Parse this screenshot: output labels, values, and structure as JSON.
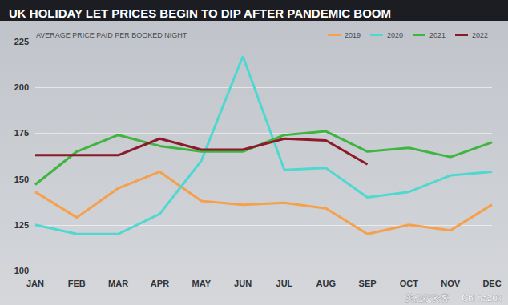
{
  "chart_data": {
    "type": "line",
    "title": "UK HOLIDAY LET PRICES BEGIN TO DIP AFTER PANDEMIC BOOM",
    "subtitle": "AVERAGE PRICE PAID PER BOOKED NIGHT",
    "annotations": [
      "英伦投资客",
      "Chi na2uk"
    ],
    "categories": [
      "JAN",
      "FEB",
      "MAR",
      "APR",
      "MAY",
      "JUN",
      "JUL",
      "AUG",
      "SEP",
      "OCT",
      "NOV",
      "DEC"
    ],
    "series": [
      {
        "name": "2019",
        "color": "#f5a04a",
        "values": [
          143,
          129,
          145,
          154,
          138,
          136,
          137,
          134,
          120,
          125,
          122,
          136
        ]
      },
      {
        "name": "2020",
        "color": "#4fd8d0",
        "values": [
          125,
          120,
          120,
          131,
          160,
          217,
          155,
          156,
          140,
          143,
          152,
          154
        ]
      },
      {
        "name": "2021",
        "color": "#3fb53f",
        "values": [
          147,
          165,
          174,
          168,
          165,
          165,
          174,
          176,
          165,
          167,
          162,
          170
        ]
      },
      {
        "name": "2022",
        "color": "#8b1a2b",
        "values": [
          163,
          163,
          163,
          172,
          166,
          166,
          172,
          171,
          158,
          null,
          null,
          null
        ]
      }
    ],
    "ylim": [
      100,
      225
    ],
    "yticks": [
      100,
      125,
      150,
      175,
      200,
      225
    ],
    "grid": true,
    "legend": "top-right"
  }
}
